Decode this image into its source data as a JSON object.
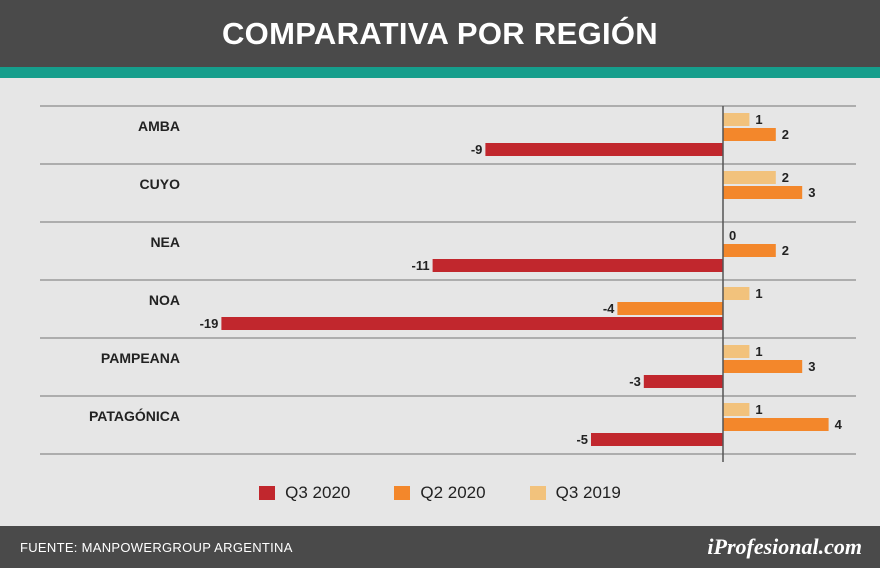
{
  "header": {
    "title": "COMPARATIVA POR REGIÓN"
  },
  "chart_data": {
    "type": "bar",
    "orientation": "horizontal",
    "title": "COMPARATIVA POR REGIÓN",
    "categories": [
      "AMBA",
      "CUYO",
      "NEA",
      "NOA",
      "PAMPEANA",
      "PATAGÓNICA"
    ],
    "series": [
      {
        "name": "Q3 2019",
        "color": "#f2c27c",
        "values": [
          1,
          2,
          0,
          1,
          1,
          1
        ]
      },
      {
        "name": "Q2 2020",
        "color": "#f3872b",
        "values": [
          2,
          3,
          2,
          -4,
          3,
          4
        ]
      },
      {
        "name": "Q3 2020",
        "color": "#c1272d",
        "values": [
          -9,
          null,
          -11,
          -19,
          -3,
          -5
        ]
      }
    ],
    "xlim": [
      -19,
      4
    ],
    "grid": true,
    "legend_position": "bottom"
  },
  "legend": [
    {
      "label": "Q3 2020",
      "color": "#c1272d"
    },
    {
      "label": "Q2 2020",
      "color": "#f3872b"
    },
    {
      "label": "Q3 2019",
      "color": "#f2c27c"
    }
  ],
  "footer": {
    "source": "FUENTE: MANPOWERGROUP ARGENTINA",
    "brand": "iProfesional.com"
  }
}
